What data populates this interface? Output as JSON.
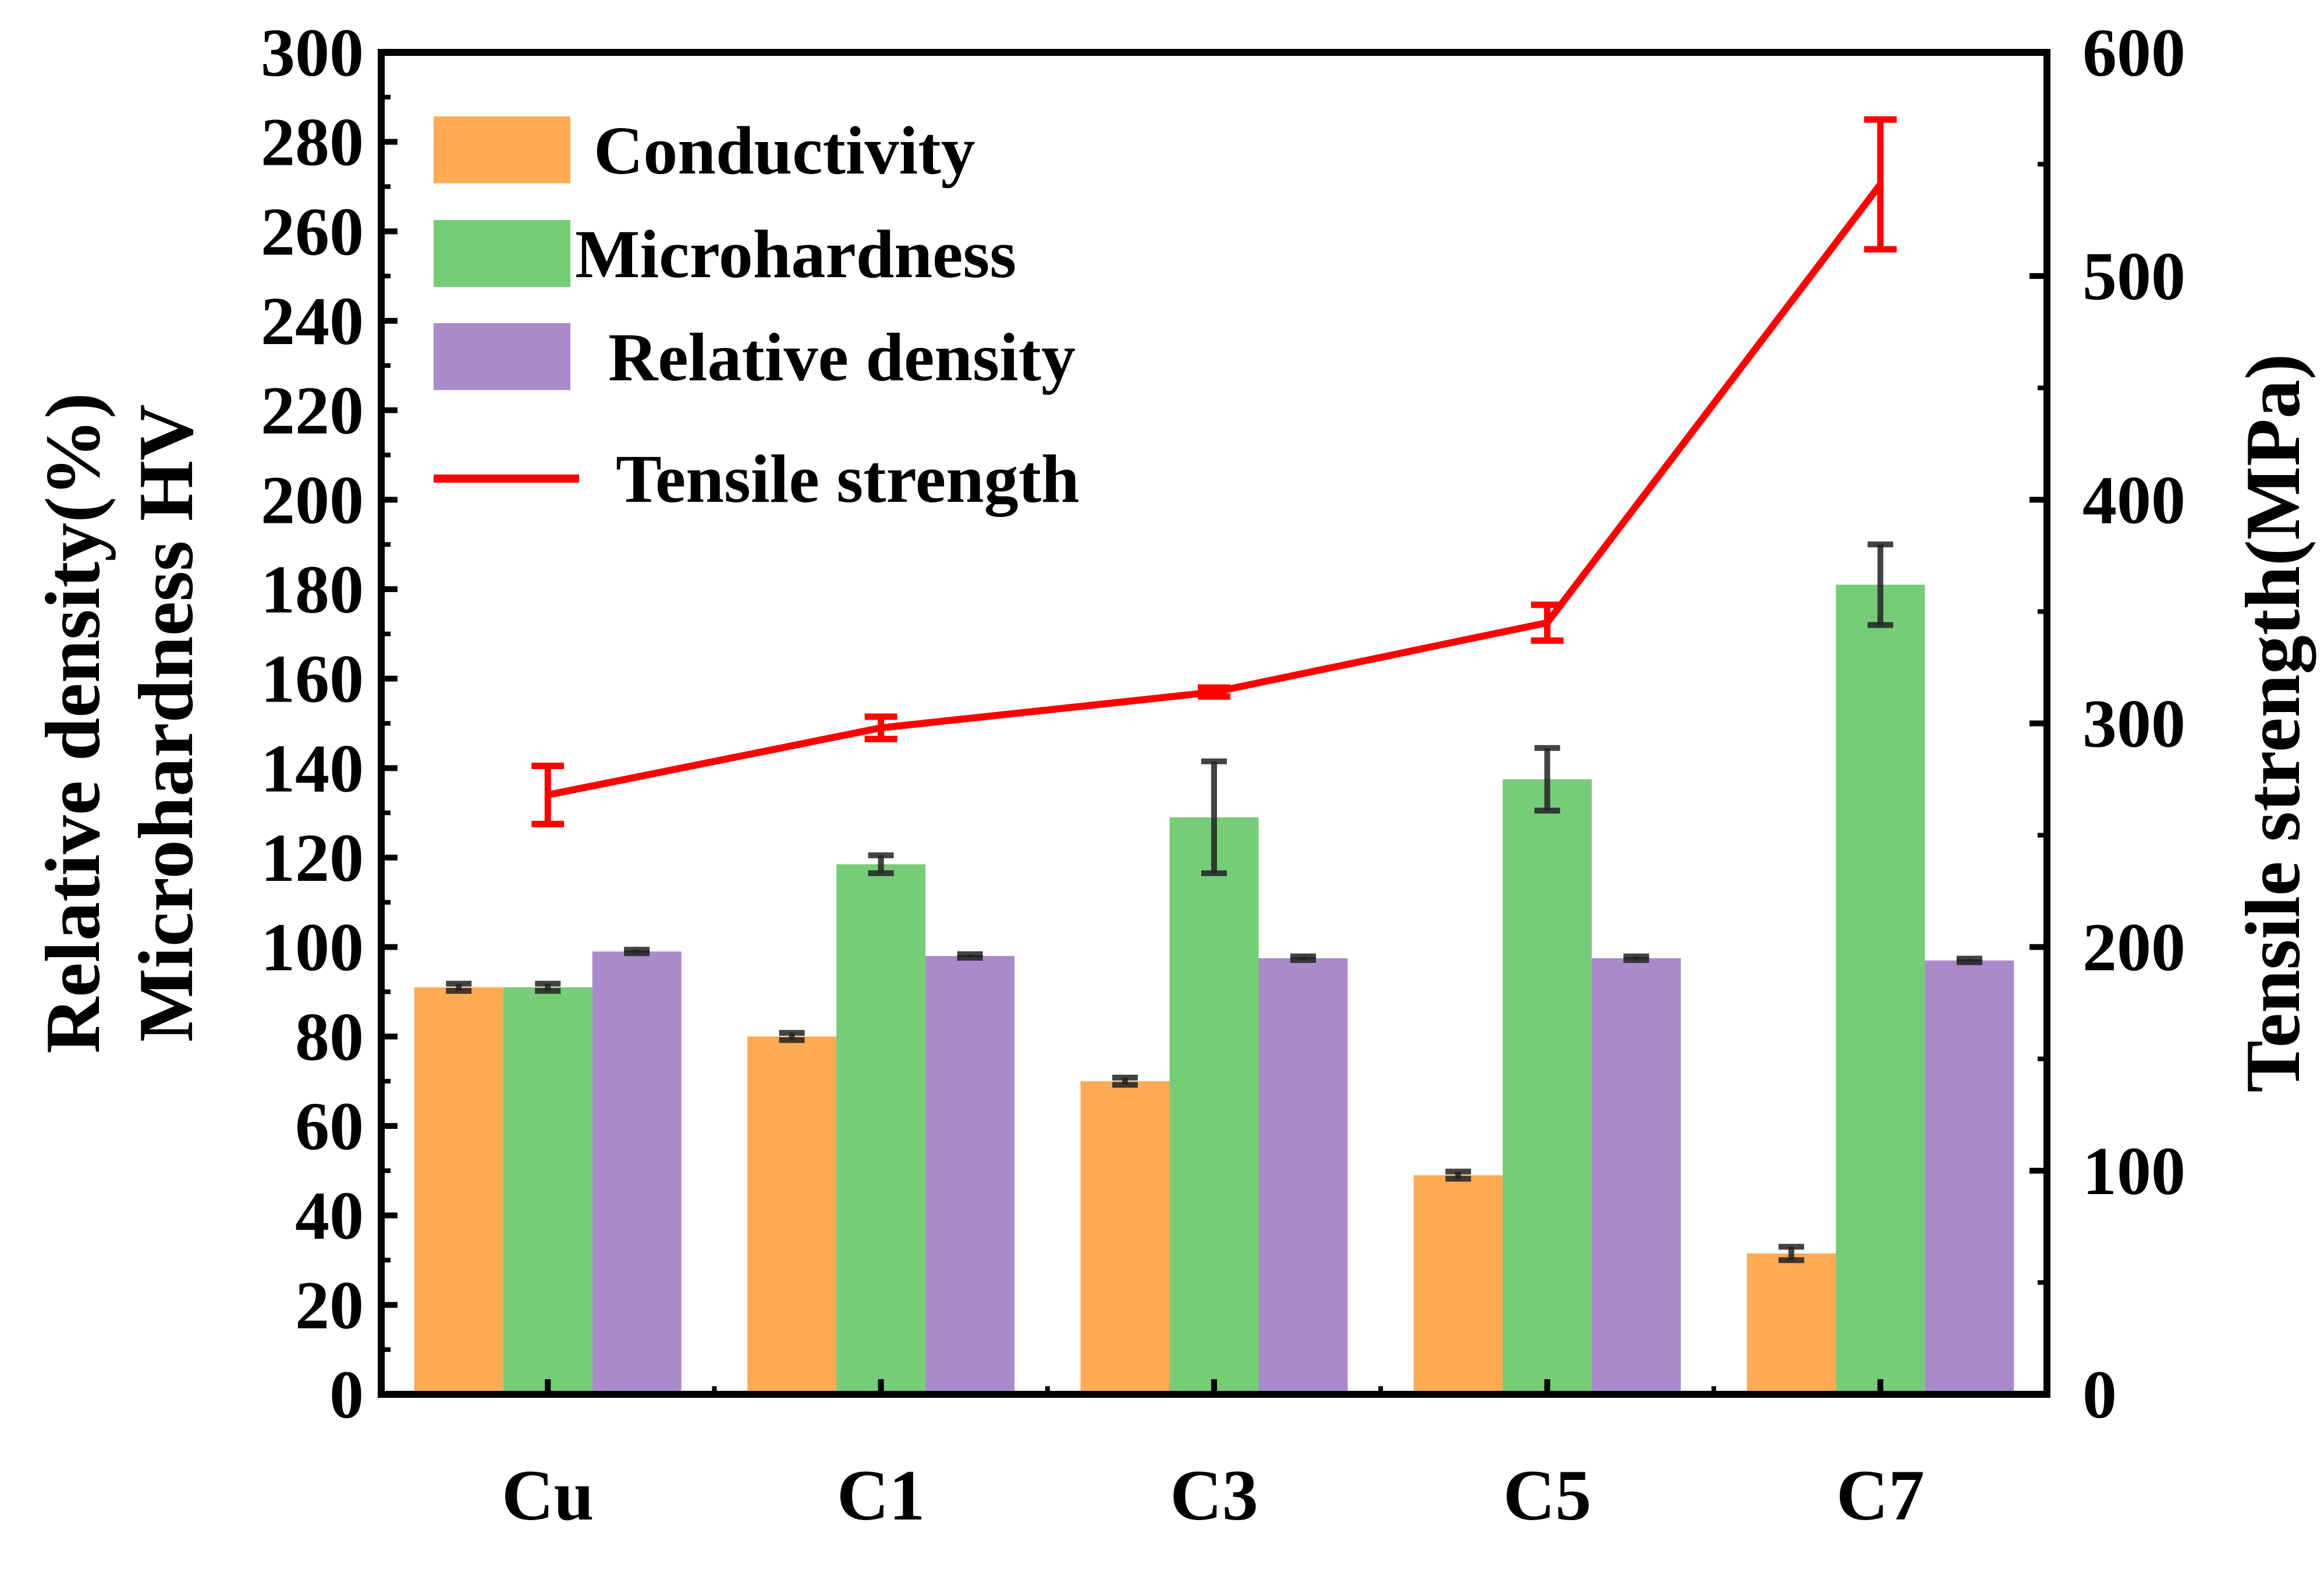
{
  "chart_data": {
    "type": "bar",
    "categories": [
      "Cu",
      "C1",
      "C3",
      "C5",
      "C7"
    ],
    "left_axis": {
      "title_line1": "Relative density(%)",
      "title_line2": "Microhardness HV",
      "ylim": [
        0,
        300
      ],
      "ticks": [
        0,
        20,
        40,
        60,
        80,
        100,
        120,
        140,
        160,
        180,
        200,
        220,
        240,
        260,
        280,
        300
      ]
    },
    "right_axis": {
      "title": "Tensile strength(MPa)",
      "ylim": [
        0,
        600
      ],
      "ticks": [
        0,
        100,
        200,
        300,
        400,
        500,
        600
      ]
    },
    "series": [
      {
        "name": "Conductivity",
        "kind": "bar",
        "axis": "left",
        "color": "#FFAA55",
        "values": [
          91,
          80,
          70,
          49,
          31.5
        ],
        "errors": [
          0.8,
          0.8,
          0.8,
          0.8,
          1.5
        ]
      },
      {
        "name": "Microhardness",
        "kind": "bar",
        "axis": "left",
        "color": "#77CC77",
        "values": [
          91,
          118.5,
          129,
          137.5,
          181
        ],
        "errors": [
          0.8,
          2,
          12.5,
          7,
          9
        ]
      },
      {
        "name": "Relative density",
        "kind": "bar",
        "axis": "left",
        "color": "#A98BCB",
        "values": [
          99,
          98,
          97.5,
          97.5,
          97
        ],
        "errors": [
          0.4,
          0.4,
          0.4,
          0.4,
          0.4
        ]
      },
      {
        "name": "Tensile strength",
        "kind": "line",
        "axis": "right",
        "color": "#FF0000",
        "values": [
          268,
          298,
          314,
          345,
          541
        ],
        "errors": [
          13,
          5,
          2,
          8,
          29
        ]
      }
    ],
    "legend": {
      "position": "top-left",
      "labels": [
        "Conductivity",
        "Microhardness",
        "Relative density",
        "Tensile strength"
      ]
    }
  }
}
